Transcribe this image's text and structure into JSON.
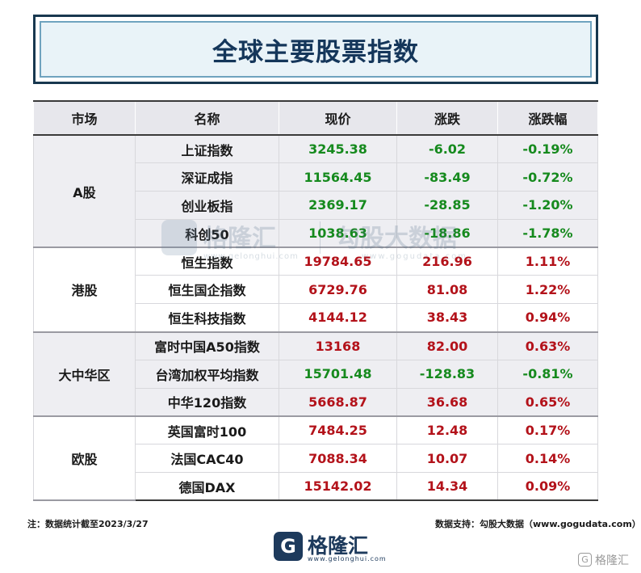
{
  "title": "全球主要股票指数",
  "table": {
    "headers": [
      "市场",
      "名称",
      "现价",
      "涨跌",
      "涨跌幅"
    ],
    "groups": [
      {
        "market": "A股",
        "rows": [
          {
            "name": "上证指数",
            "price": "3245.38",
            "change": "-6.02",
            "pct": "-0.19%"
          },
          {
            "name": "深证成指",
            "price": "11564.45",
            "change": "-83.49",
            "pct": "-0.72%"
          },
          {
            "name": "创业板指",
            "price": "2369.17",
            "change": "-28.85",
            "pct": "-1.20%"
          },
          {
            "name": "科创50",
            "price": "1038.63",
            "change": "-18.86",
            "pct": "-1.78%"
          }
        ]
      },
      {
        "market": "港股",
        "rows": [
          {
            "name": "恒生指数",
            "price": "19784.65",
            "change": "216.96",
            "pct": "1.11%"
          },
          {
            "name": "恒生国企指数",
            "price": "6729.76",
            "change": "81.08",
            "pct": "1.22%"
          },
          {
            "name": "恒生科技指数",
            "price": "4144.12",
            "change": "38.43",
            "pct": "0.94%"
          }
        ]
      },
      {
        "market": "大中华区",
        "rows": [
          {
            "name": "富时中国A50指数",
            "price": "13168",
            "change": "82.00",
            "pct": "0.63%"
          },
          {
            "name": "台湾加权平均指数",
            "price": "15701.48",
            "change": "-128.83",
            "pct": "-0.81%"
          },
          {
            "name": "中华120指数",
            "price": "5668.87",
            "change": "36.68",
            "pct": "0.65%"
          }
        ]
      },
      {
        "market": "欧股",
        "rows": [
          {
            "name": "英国富时100",
            "price": "7484.25",
            "change": "12.48",
            "pct": "0.17%"
          },
          {
            "name": "法国CAC40",
            "price": "7088.34",
            "change": "10.07",
            "pct": "0.14%"
          },
          {
            "name": "德国DAX",
            "price": "15142.02",
            "change": "14.34",
            "pct": "0.09%"
          }
        ]
      }
    ]
  },
  "notes": {
    "left": "注：数据统计截至2023/3/27",
    "right": "数据支持：勾股大数据（www.gogudata.com）"
  },
  "watermark": {
    "brand": "格隆汇",
    "brand_url": "www.gelonghui.com",
    "data_brand": "勾股大数据",
    "data_url": "www.gogudata.com"
  },
  "footer_logo": {
    "glyph": "G",
    "name": "格隆汇",
    "url": "www.gelonghui.com"
  },
  "corner_mark": {
    "glyph": "G",
    "text": "格隆汇"
  },
  "colors": {
    "up": "#b3121a",
    "down": "#168a1e",
    "title": "#14365a"
  }
}
